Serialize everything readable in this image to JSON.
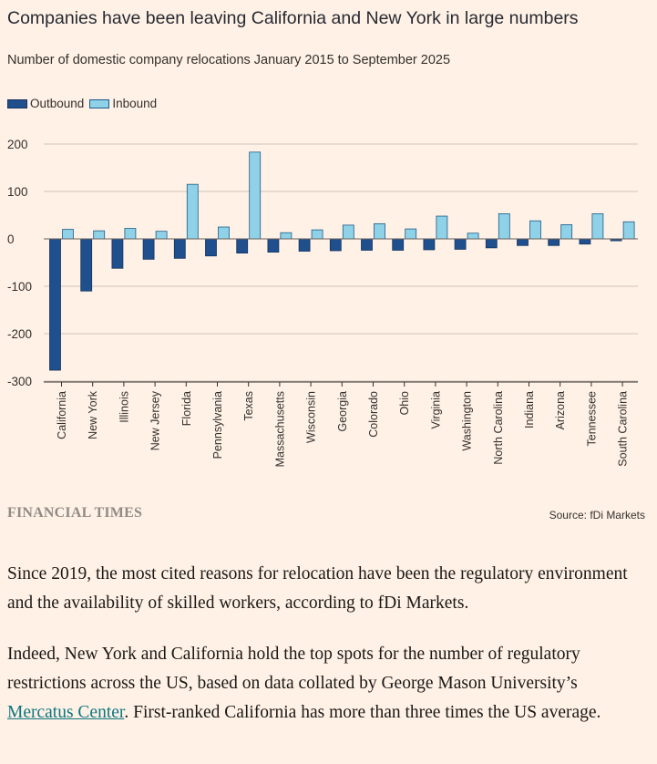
{
  "chart_data": {
    "type": "bar",
    "title": "Companies have been leaving California and New York in large numbers",
    "subtitle": "Number of domestic company relocations January 2015 to September 2025",
    "categories": [
      "California",
      "New York",
      "Illinois",
      "New Jersey",
      "Florida",
      "Pennsylvania",
      "Texas",
      "Massachusetts",
      "Wisconsin",
      "Georgia",
      "Colorado",
      "Ohio",
      "Virginia",
      "Washington",
      "North Carolina",
      "Indiana",
      "Arizona",
      "Tennessee",
      "South Carolina"
    ],
    "series": [
      {
        "name": "Outbound",
        "color": "#1f4f8c",
        "values": [
          -277,
          -110,
          -62,
          -43,
          -41,
          -36,
          -30,
          -28,
          -26,
          -25,
          -24,
          -24,
          -23,
          -22,
          -19,
          -14,
          -14,
          -11,
          -4
        ]
      },
      {
        "name": "Inbound",
        "color": "#8fd1e6",
        "values": [
          20,
          17,
          22,
          16,
          115,
          25,
          183,
          13,
          19,
          29,
          32,
          21,
          48,
          12,
          53,
          38,
          30,
          53,
          36
        ]
      }
    ],
    "yticks": [
      200,
      100,
      0,
      -100,
      -200,
      -300
    ],
    "ytick_labels": [
      "200",
      "100",
      "0",
      "-100",
      "-200",
      "-300"
    ],
    "ylim": [
      -300,
      200
    ],
    "xlabel": "",
    "ylabel": "",
    "grid": true,
    "legend": "top-left"
  },
  "legend": {
    "outbound": "Outbound",
    "inbound": "Inbound"
  },
  "footer": {
    "brand": "FINANCIAL TIMES",
    "source": "Source: fDi Markets"
  },
  "article": {
    "p1": "Since 2019, the most cited reasons for relocation have been the regulatory environment and the availability of skilled workers, according to fDi Markets.",
    "p2_before": "Indeed, New York and California hold the top spots for the number of regulatory restrictions across the US, based on data collated by George Mason University’s ",
    "p2_link": "Mercatus Center",
    "p2_after": ". First-ranked California has more than three times the US average."
  }
}
